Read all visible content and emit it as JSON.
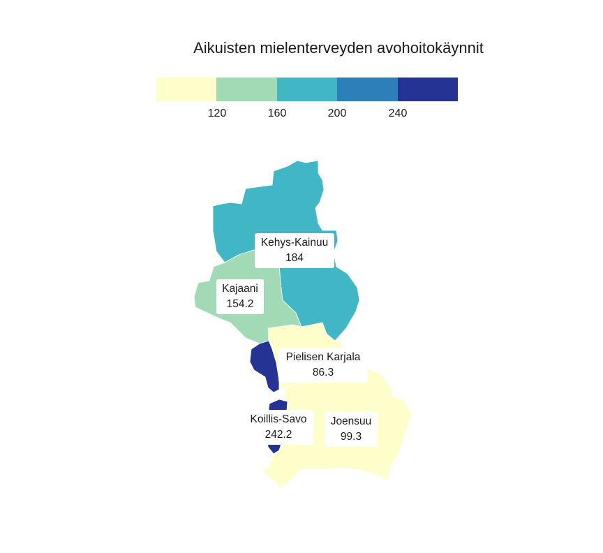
{
  "title": "Aikuisten mielenterveyden avohoitokäynnit",
  "legend": {
    "colors": [
      "#ffffcc",
      "#a1dab4",
      "#41b6c4",
      "#2c7fb8",
      "#253494"
    ],
    "breaks": [
      "120",
      "160",
      "200",
      "240"
    ]
  },
  "chart_data": {
    "type": "choropleth",
    "regions": [
      {
        "name": "Kehys-Kainuu",
        "value": 184,
        "label": "184",
        "color": "#41b6c4"
      },
      {
        "name": "Kajaani",
        "value": 154.2,
        "label": "154.2",
        "color": "#a1dab4"
      },
      {
        "name": "Pielisen Karjala",
        "value": 86.3,
        "label": "86.3",
        "color": "#ffffcc"
      },
      {
        "name": "Koillis-Savo",
        "value": 242.2,
        "label": "242.2",
        "color": "#253494"
      },
      {
        "name": "Joensuu",
        "value": 99.3,
        "label": "99.3",
        "color": "#ffffcc"
      }
    ]
  }
}
